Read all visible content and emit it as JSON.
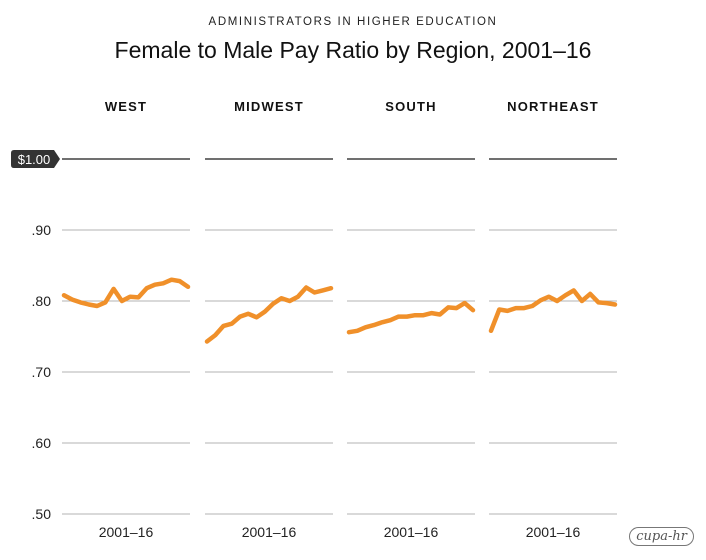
{
  "supertitle": "ADMINISTRATORS IN HIGHER EDUCATION",
  "title": "Female to Male Pay Ratio by Region, 2001–16",
  "logo_text": "cupa-hr",
  "colors": {
    "line": "#f0902a",
    "grid": "#9a9a9a",
    "baseline": "#1a1a1a",
    "badge": "#333333"
  },
  "chart_data": {
    "type": "line",
    "ylim": [
      0.5,
      1.0
    ],
    "yticks": [
      1.0,
      0.9,
      0.8,
      0.7,
      0.6,
      0.5
    ],
    "ytick_labels": [
      "$1.00",
      ".90",
      ".80",
      ".70",
      ".60",
      ".50"
    ],
    "xlabel": "2001–16",
    "grid": true,
    "panels": [
      {
        "name": "WEST",
        "x": [
          2001,
          2002,
          2003,
          2004,
          2005,
          2006,
          2007,
          2008,
          2009,
          2010,
          2011,
          2012,
          2013,
          2014,
          2015,
          2016
        ],
        "values": [
          0.808,
          0.802,
          0.798,
          0.795,
          0.793,
          0.798,
          0.817,
          0.8,
          0.806,
          0.805,
          0.818,
          0.823,
          0.825,
          0.83,
          0.828,
          0.82
        ]
      },
      {
        "name": "MIDWEST",
        "x": [
          2001,
          2002,
          2003,
          2004,
          2005,
          2006,
          2007,
          2008,
          2009,
          2010,
          2011,
          2012,
          2013,
          2014,
          2015,
          2016
        ],
        "values": [
          0.743,
          0.752,
          0.765,
          0.768,
          0.778,
          0.782,
          0.777,
          0.785,
          0.796,
          0.804,
          0.8,
          0.806,
          0.819,
          0.812,
          0.815,
          0.818
        ]
      },
      {
        "name": "SOUTH",
        "x": [
          2001,
          2002,
          2003,
          2004,
          2005,
          2006,
          2007,
          2008,
          2009,
          2010,
          2011,
          2012,
          2013,
          2014,
          2015,
          2016
        ],
        "values": [
          0.756,
          0.758,
          0.763,
          0.766,
          0.77,
          0.773,
          0.778,
          0.778,
          0.78,
          0.78,
          0.783,
          0.781,
          0.791,
          0.79,
          0.797,
          0.787
        ]
      },
      {
        "name": "NORTHEAST",
        "x": [
          2001,
          2002,
          2003,
          2004,
          2005,
          2006,
          2007,
          2008,
          2009,
          2010,
          2011,
          2012,
          2013,
          2014,
          2015,
          2016
        ],
        "values": [
          0.758,
          0.788,
          0.786,
          0.79,
          0.79,
          0.793,
          0.801,
          0.806,
          0.8,
          0.808,
          0.815,
          0.8,
          0.81,
          0.798,
          0.797,
          0.795
        ]
      }
    ]
  }
}
